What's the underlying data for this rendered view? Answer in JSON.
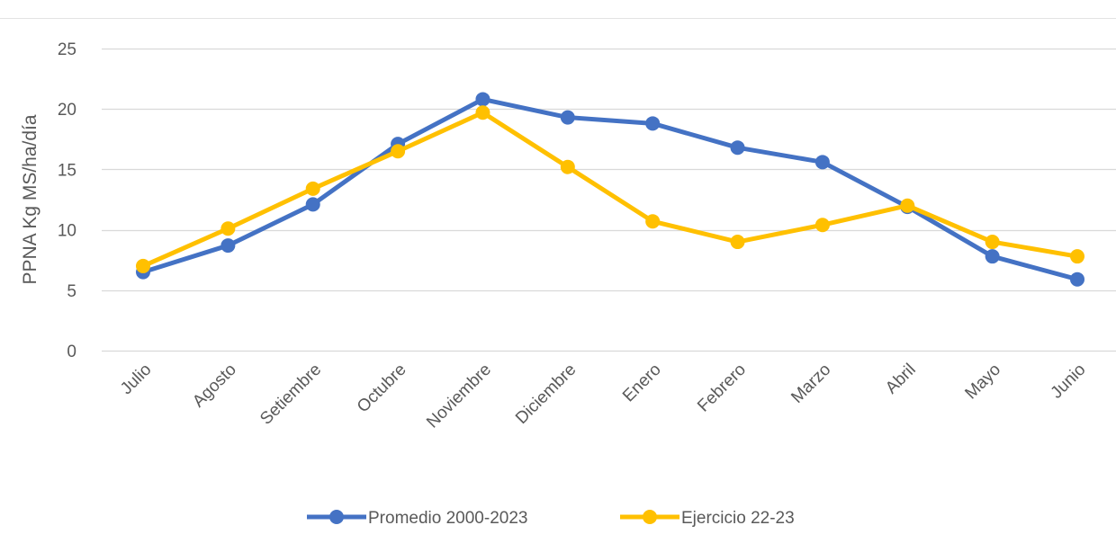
{
  "chart_data": {
    "type": "line",
    "title": "",
    "xlabel": "",
    "ylabel": "PPNA Kg MS/ha/día",
    "ylim": [
      0,
      25
    ],
    "yticks": [
      0,
      5,
      10,
      15,
      20,
      25
    ],
    "grid": true,
    "legend_position": "bottom",
    "categories": [
      "Julio",
      "Agosto",
      "Setiembre",
      "Octubre",
      "Noviembre",
      "Diciembre",
      "Enero",
      "Febrero",
      "Marzo",
      "Abril",
      "Mayo",
      "Junio"
    ],
    "series": [
      {
        "name": "Promedio 2000-2023",
        "color": "#4472C4",
        "values": [
          6.5,
          8.7,
          12.1,
          17.1,
          20.8,
          19.3,
          18.8,
          16.8,
          15.6,
          11.9,
          7.8,
          5.9
        ]
      },
      {
        "name": "Ejercicio 22-23",
        "color": "#FFC000",
        "values": [
          7.0,
          10.1,
          13.4,
          16.5,
          19.7,
          15.2,
          10.7,
          9.0,
          10.4,
          12.0,
          9.0,
          7.8
        ]
      }
    ]
  }
}
